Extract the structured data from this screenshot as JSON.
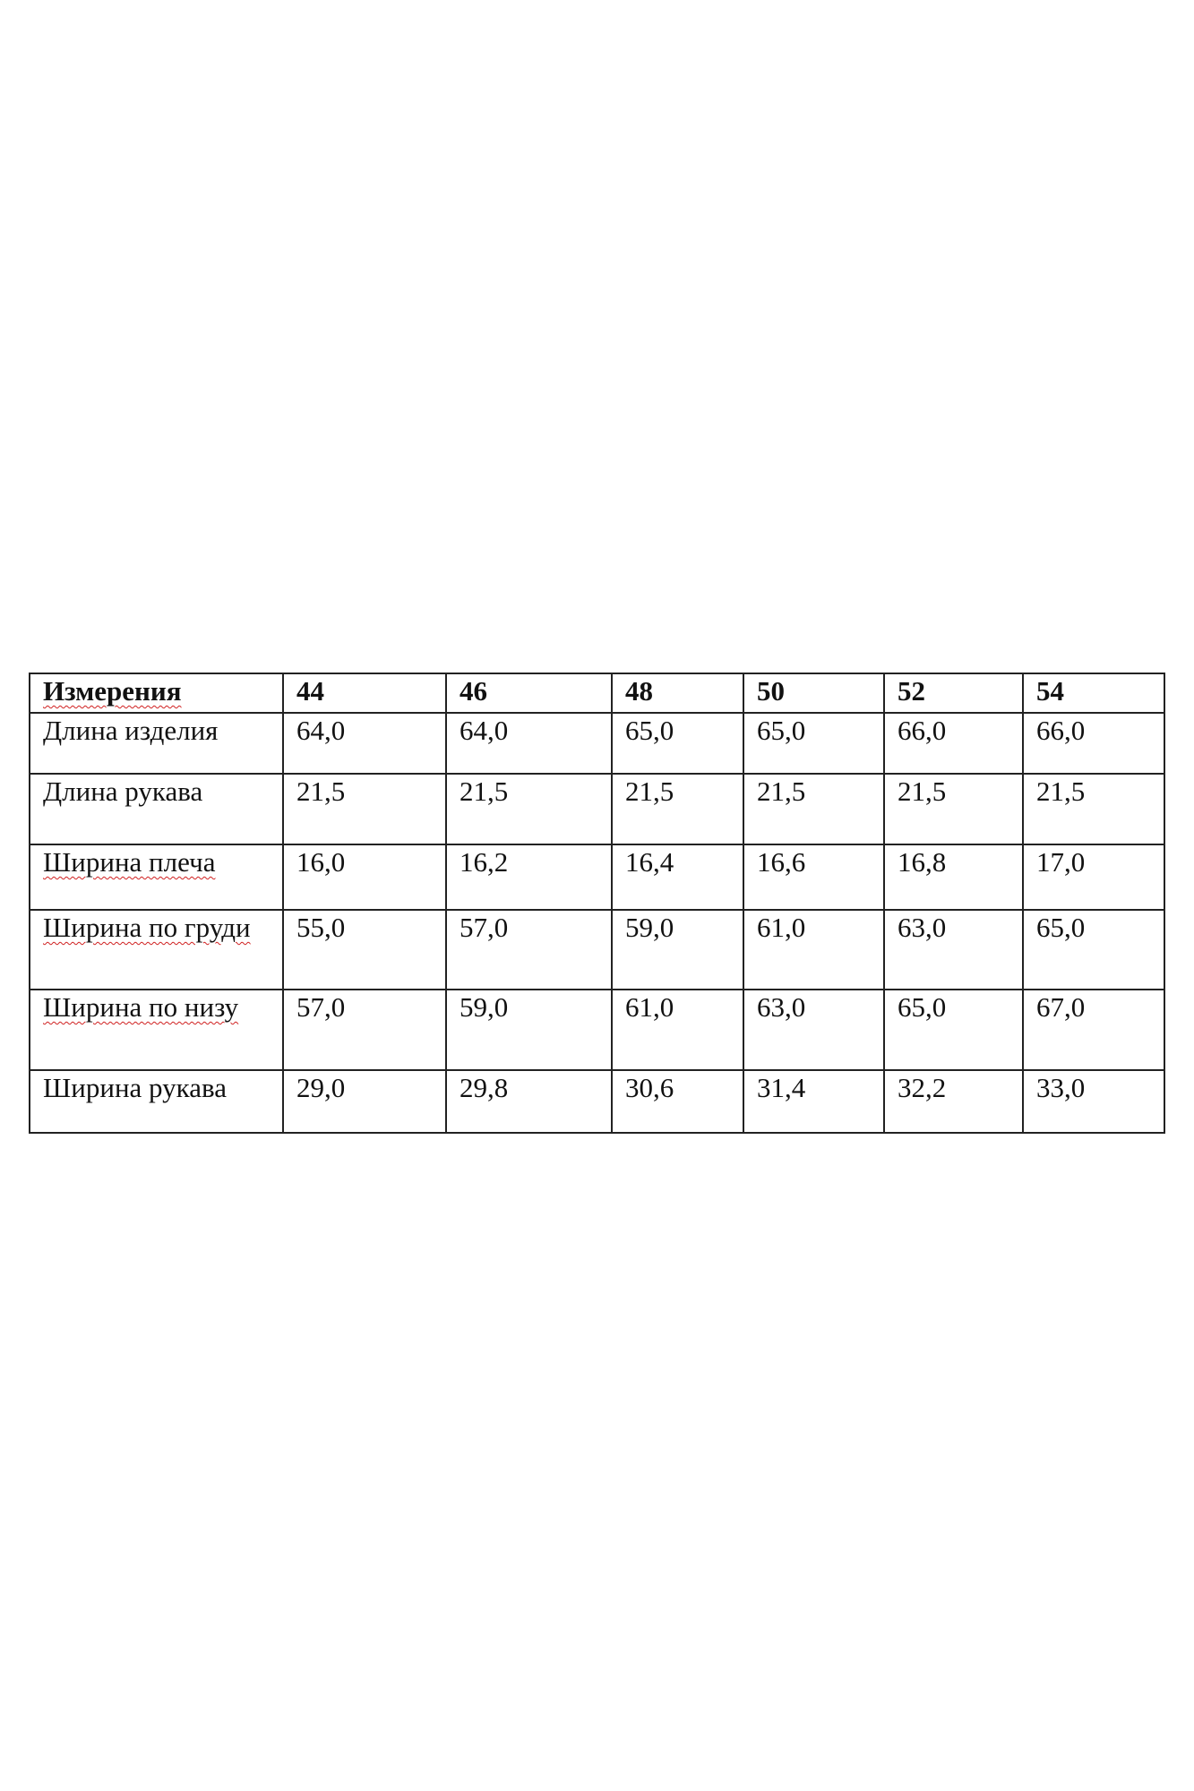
{
  "table": {
    "header": [
      "Измерения",
      "44",
      "46",
      "48",
      "50",
      "52",
      "54"
    ],
    "rows": [
      {
        "label": "Длина изделия",
        "values": [
          "64,0",
          "64,0",
          "65,0",
          "65,0",
          "66,0",
          "66,0"
        ]
      },
      {
        "label": "Длина рукава",
        "values": [
          "21,5",
          "21,5",
          "21,5",
          "21,5",
          "21,5",
          "21,5"
        ]
      },
      {
        "label": "Ширина плеча",
        "values": [
          "16,0",
          "16,2",
          "16,4",
          "16,6",
          "16,8",
          "17,0"
        ]
      },
      {
        "label": "Ширина по груди",
        "values": [
          "55,0",
          "57,0",
          "59,0",
          "61,0",
          "63,0",
          "65,0"
        ]
      },
      {
        "label": "Ширина по низу",
        "values": [
          "57,0",
          "59,0",
          "61,0",
          "63,0",
          "65,0",
          "67,0"
        ]
      },
      {
        "label": "Ширина рукава",
        "values": [
          "29,0",
          "29,8",
          "30,6",
          "31,4",
          "32,2",
          "33,0"
        ]
      }
    ]
  }
}
